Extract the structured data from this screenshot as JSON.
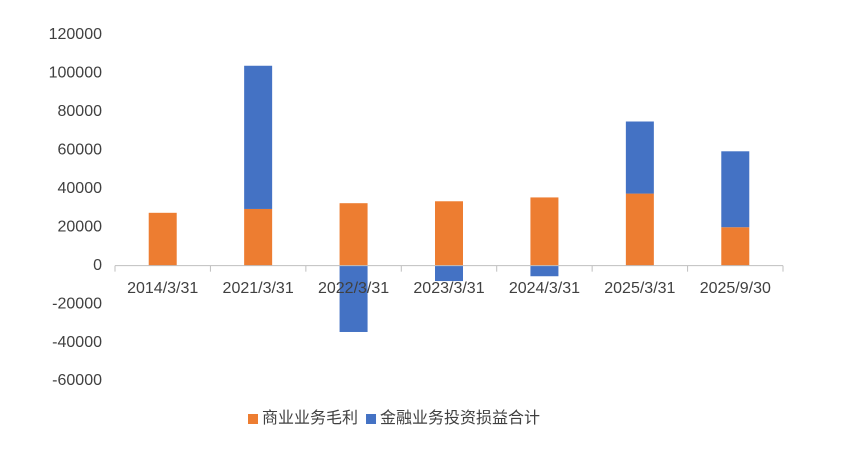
{
  "chart_data": {
    "type": "stacked_bar",
    "categories": [
      "2014/3/31",
      "2021/3/31",
      "2022/3/31",
      "2023/3/31",
      "2024/3/31",
      "2025/3/31",
      "2025/9/30"
    ],
    "series": [
      {
        "name": "商业业务毛利",
        "color": "#ed7d31",
        "values": [
          27500,
          29500,
          32500,
          33500,
          35500,
          37500,
          20000
        ]
      },
      {
        "name": "金融业务投资损益合计",
        "color": "#4472c4",
        "values": [
          null,
          74500,
          -34500,
          -8000,
          -5500,
          37500,
          39500
        ]
      }
    ],
    "ylim": [
      -60000,
      120000
    ],
    "yticks": [
      -60000,
      -40000,
      -20000,
      0,
      20000,
      40000,
      60000,
      80000,
      100000,
      120000
    ],
    "grid": false,
    "legend": "bottom"
  }
}
